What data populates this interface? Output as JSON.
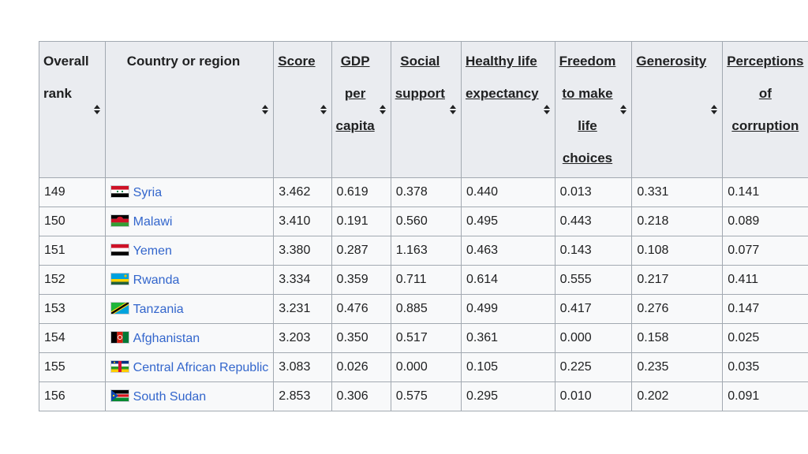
{
  "table": {
    "headers": {
      "rank": [
        "Overall",
        "rank"
      ],
      "country": "Country or region",
      "score": "Score",
      "gdp": [
        "GDP",
        "per",
        "capita"
      ],
      "social": [
        "Social",
        "support"
      ],
      "health": [
        "Healthy life",
        "expectancy"
      ],
      "freedom": [
        "Freedom",
        "to make",
        "life",
        "choices"
      ],
      "generosity": "Generosity",
      "corruption": [
        "Perceptions",
        "of",
        "corruption"
      ]
    },
    "rows": [
      {
        "rank": "149",
        "country": "Syria",
        "flag": "syria-flag",
        "score": "3.462",
        "gdp": "0.619",
        "social": "0.378",
        "health": "0.440",
        "freedom": "0.013",
        "generosity": "0.331",
        "corruption": "0.141"
      },
      {
        "rank": "150",
        "country": "Malawi",
        "flag": "malawi-flag",
        "score": "3.410",
        "gdp": "0.191",
        "social": "0.560",
        "health": "0.495",
        "freedom": "0.443",
        "generosity": "0.218",
        "corruption": "0.089"
      },
      {
        "rank": "151",
        "country": "Yemen",
        "flag": "yemen-flag",
        "score": "3.380",
        "gdp": "0.287",
        "social": "1.163",
        "health": "0.463",
        "freedom": "0.143",
        "generosity": "0.108",
        "corruption": "0.077"
      },
      {
        "rank": "152",
        "country": "Rwanda",
        "flag": "rwanda-flag",
        "score": "3.334",
        "gdp": "0.359",
        "social": "0.711",
        "health": "0.614",
        "freedom": "0.555",
        "generosity": "0.217",
        "corruption": "0.411"
      },
      {
        "rank": "153",
        "country": "Tanzania",
        "flag": "tanzania-flag",
        "score": "3.231",
        "gdp": "0.476",
        "social": "0.885",
        "health": "0.499",
        "freedom": "0.417",
        "generosity": "0.276",
        "corruption": "0.147"
      },
      {
        "rank": "154",
        "country": "Afghanistan",
        "flag": "afghanistan-flag",
        "score": "3.203",
        "gdp": "0.350",
        "social": "0.517",
        "health": "0.361",
        "freedom": "0.000",
        "generosity": "0.158",
        "corruption": "0.025"
      },
      {
        "rank": "155",
        "country": "Central African Republic",
        "flag": "central-african-republic-flag",
        "score": "3.083",
        "gdp": "0.026",
        "social": "0.000",
        "health": "0.105",
        "freedom": "0.225",
        "generosity": "0.235",
        "corruption": "0.035"
      },
      {
        "rank": "156",
        "country": "South Sudan",
        "flag": "south-sudan-flag",
        "score": "2.853",
        "gdp": "0.306",
        "social": "0.575",
        "health": "0.295",
        "freedom": "0.010",
        "generosity": "0.202",
        "corruption": "0.091"
      }
    ]
  },
  "colors": {
    "link": "#3366cc",
    "header_bg": "#eaecf0",
    "cell_bg": "#f8f9fa",
    "border": "#a2a9b1",
    "text": "#202122"
  }
}
